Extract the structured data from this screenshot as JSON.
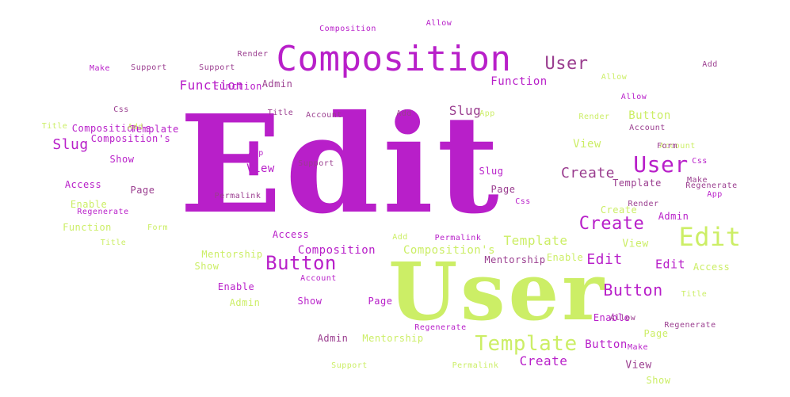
{
  "palette": {
    "purple": "#b81fc9",
    "mauve": "#9a3d8f",
    "lime": "#ccee66",
    "dim": "#c9a8cc"
  },
  "words": [
    {
      "text": "Edit",
      "c": "purple",
      "s": 170
    },
    {
      "text": "User",
      "c": "lime",
      "s": 100
    },
    {
      "text": "Composition",
      "c": "purple",
      "s": 44
    },
    {
      "text": "Template",
      "c": "lime",
      "s": 26
    },
    {
      "text": "Edit",
      "c": "lime",
      "s": 32
    },
    {
      "text": "Button",
      "c": "purple",
      "s": 24
    },
    {
      "text": "User",
      "c": "purple",
      "s": 28
    },
    {
      "text": "Create",
      "c": "purple",
      "s": 22
    },
    {
      "text": "Button",
      "c": "purple",
      "s": 20
    },
    {
      "text": "User",
      "c": "mauve",
      "s": 22
    },
    {
      "text": "Function",
      "c": "purple",
      "s": 16
    },
    {
      "text": "Function",
      "c": "purple",
      "s": 14
    },
    {
      "text": "Slug",
      "c": "purple",
      "s": 18
    },
    {
      "text": "Slug",
      "c": "mauve",
      "s": 16
    },
    {
      "text": "Create",
      "c": "mauve",
      "s": 18
    },
    {
      "text": "Template",
      "c": "lime",
      "s": 16
    },
    {
      "text": "Composition",
      "c": "purple",
      "s": 14
    },
    {
      "text": "Composition's",
      "c": "lime",
      "s": 14
    },
    {
      "text": "Edit",
      "c": "purple",
      "s": 18
    },
    {
      "text": "Edit",
      "c": "purple",
      "s": 15
    },
    {
      "text": "Mentorship",
      "c": "lime",
      "s": 12
    },
    {
      "text": "Mentorship",
      "c": "mauve",
      "s": 12
    },
    {
      "text": "Mentorship",
      "c": "lime",
      "s": 12
    },
    {
      "text": "Create",
      "c": "purple",
      "s": 16
    },
    {
      "text": "Button",
      "c": "purple",
      "s": 14
    },
    {
      "text": "Button",
      "c": "lime",
      "s": 14
    },
    {
      "text": "Template",
      "c": "mauve",
      "s": 12
    },
    {
      "text": "Template",
      "c": "purple",
      "s": 12
    },
    {
      "text": "View",
      "c": "purple",
      "s": 14
    },
    {
      "text": "View",
      "c": "lime",
      "s": 14
    },
    {
      "text": "View",
      "c": "lime",
      "s": 13
    },
    {
      "text": "View",
      "c": "mauve",
      "s": 13
    },
    {
      "text": "Page",
      "c": "mauve",
      "s": 12
    },
    {
      "text": "Page",
      "c": "purple",
      "s": 12
    },
    {
      "text": "Page",
      "c": "mauve",
      "s": 12
    },
    {
      "text": "Page",
      "c": "lime",
      "s": 12
    },
    {
      "text": "Admin",
      "c": "mauve",
      "s": 12
    },
    {
      "text": "Admin",
      "c": "purple",
      "s": 12
    },
    {
      "text": "Admin",
      "c": "mauve",
      "s": 12
    },
    {
      "text": "Admin",
      "c": "lime",
      "s": 12
    },
    {
      "text": "Access",
      "c": "purple",
      "s": 12
    },
    {
      "text": "Access",
      "c": "purple",
      "s": 12
    },
    {
      "text": "Access",
      "c": "lime",
      "s": 12
    },
    {
      "text": "Enable",
      "c": "lime",
      "s": 12
    },
    {
      "text": "Enable",
      "c": "purple",
      "s": 12
    },
    {
      "text": "Enable",
      "c": "lime",
      "s": 12
    },
    {
      "text": "Enable",
      "c": "purple",
      "s": 12
    },
    {
      "text": "Show",
      "c": "purple",
      "s": 12
    },
    {
      "text": "Show",
      "c": "lime",
      "s": 12
    },
    {
      "text": "Show",
      "c": "purple",
      "s": 12
    },
    {
      "text": "Show",
      "c": "lime",
      "s": 12
    },
    {
      "text": "Composition's",
      "c": "purple",
      "s": 12
    },
    {
      "text": "Composition's",
      "c": "purple",
      "s": 12
    },
    {
      "text": "Regenerate",
      "c": "purple",
      "s": 10
    },
    {
      "text": "Regenerate",
      "c": "purple",
      "s": 10
    },
    {
      "text": "Regenerate",
      "c": "mauve",
      "s": 10
    },
    {
      "text": "Regenerate",
      "c": "mauve",
      "s": 10
    },
    {
      "text": "Permalink",
      "c": "mauve",
      "s": 10
    },
    {
      "text": "Permalink",
      "c": "purple",
      "s": 10
    },
    {
      "text": "Permalink",
      "c": "lime",
      "s": 10
    },
    {
      "text": "Make",
      "c": "purple",
      "s": 10
    },
    {
      "text": "Make",
      "c": "mauve",
      "s": 10
    },
    {
      "text": "Make",
      "c": "purple",
      "s": 10
    },
    {
      "text": "Support",
      "c": "mauve",
      "s": 10
    },
    {
      "text": "Support",
      "c": "mauve",
      "s": 10
    },
    {
      "text": "Support",
      "c": "mauve",
      "s": 10
    },
    {
      "text": "Support",
      "c": "lime",
      "s": 10
    },
    {
      "text": "Render",
      "c": "mauve",
      "s": 10
    },
    {
      "text": "Render",
      "c": "lime",
      "s": 10
    },
    {
      "text": "Render",
      "c": "mauve",
      "s": 10
    },
    {
      "text": "Allow",
      "c": "purple",
      "s": 10
    },
    {
      "text": "Allow",
      "c": "lime",
      "s": 10
    },
    {
      "text": "Allow",
      "c": "mauve",
      "s": 10
    },
    {
      "text": "Allow",
      "c": "purple",
      "s": 10
    },
    {
      "text": "Account",
      "c": "mauve",
      "s": 10
    },
    {
      "text": "Account",
      "c": "mauve",
      "s": 10
    },
    {
      "text": "Account",
      "c": "purple",
      "s": 10
    },
    {
      "text": "Account",
      "c": "lime",
      "s": 10
    },
    {
      "text": "Title",
      "c": "lime",
      "s": 10
    },
    {
      "text": "Title",
      "c": "mauve",
      "s": 10
    },
    {
      "text": "Title",
      "c": "lime",
      "s": 10
    },
    {
      "text": "Title",
      "c": "lime",
      "s": 10
    },
    {
      "text": "Add",
      "c": "mauve",
      "s": 10
    },
    {
      "text": "Add",
      "c": "lime",
      "s": 10
    },
    {
      "text": "Add",
      "c": "lime",
      "s": 10
    },
    {
      "text": "Add",
      "c": "mauve",
      "s": 10
    },
    {
      "text": "App",
      "c": "purple",
      "s": 10
    },
    {
      "text": "App",
      "c": "lime",
      "s": 10
    },
    {
      "text": "App",
      "c": "purple",
      "s": 10
    },
    {
      "text": "Css",
      "c": "mauve",
      "s": 10
    },
    {
      "text": "Css",
      "c": "purple",
      "s": 10
    },
    {
      "text": "Css",
      "c": "purple",
      "s": 10
    },
    {
      "text": "Form",
      "c": "mauve",
      "s": 10
    },
    {
      "text": "Form",
      "c": "lime",
      "s": 10
    },
    {
      "text": "Function",
      "c": "lime",
      "s": 12
    },
    {
      "text": "Function",
      "c": "purple",
      "s": 12
    },
    {
      "text": "Composition",
      "c": "purple",
      "s": 10
    },
    {
      "text": "Slug",
      "c": "purple",
      "s": 12
    },
    {
      "text": "Create",
      "c": "lime",
      "s": 12
    }
  ]
}
